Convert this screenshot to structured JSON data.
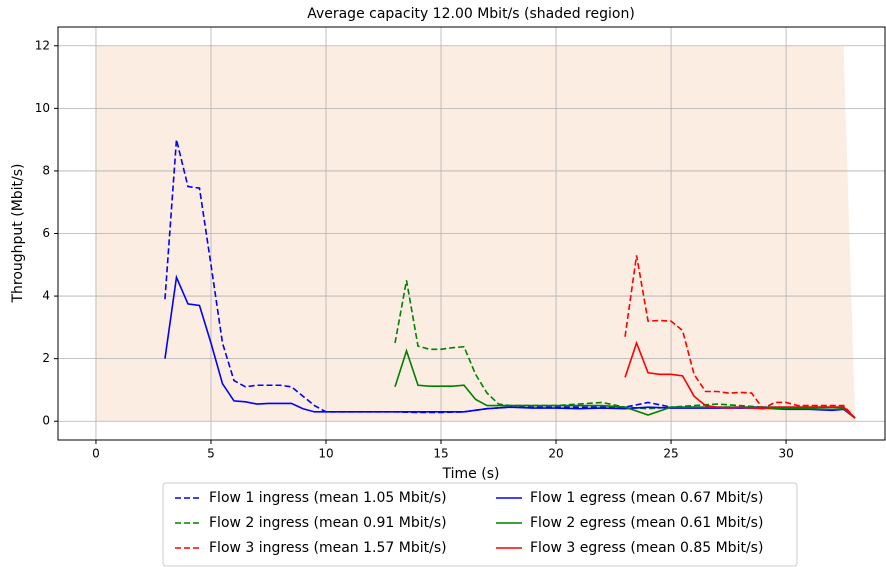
{
  "chart_data": {
    "type": "line",
    "title": "Average capacity 12.00 Mbit/s (shaded region)",
    "xlabel": "Time (s)",
    "ylabel": "Throughput (Mbit/s)",
    "xlim": [
      -1.65,
      34.3
    ],
    "ylim": [
      -0.6,
      12.6
    ],
    "xticks": [
      0,
      5,
      10,
      15,
      20,
      25,
      30
    ],
    "yticks": [
      0,
      2,
      4,
      6,
      8,
      10,
      12
    ],
    "grid": true,
    "legend": "lower center",
    "shaded_region": {
      "color": "#fbede2",
      "x": [
        0,
        32.5,
        33
      ],
      "values": [
        12,
        12,
        0.1
      ]
    },
    "series": [
      {
        "name": "Flow 1 ingress (mean 1.05 Mbit/s)",
        "color": "#0000ff",
        "dashed": true,
        "x": [
          3,
          3.5,
          4,
          4.5,
          5,
          5.5,
          6,
          6.5,
          7,
          7.5,
          8,
          8.5,
          9,
          9.5,
          10,
          11,
          12,
          13,
          14,
          15,
          16,
          17,
          18,
          19,
          20,
          21,
          22,
          23,
          24,
          25,
          26,
          27,
          28,
          29,
          30,
          31,
          32,
          32.5,
          33
        ],
        "values": [
          3.9,
          9.0,
          7.5,
          7.45,
          5.0,
          2.5,
          1.3,
          1.1,
          1.15,
          1.15,
          1.15,
          1.1,
          0.8,
          0.5,
          0.3,
          0.3,
          0.3,
          0.3,
          0.28,
          0.28,
          0.3,
          0.4,
          0.45,
          0.45,
          0.45,
          0.45,
          0.45,
          0.45,
          0.6,
          0.45,
          0.45,
          0.45,
          0.45,
          0.45,
          0.45,
          0.45,
          0.45,
          0.45,
          0.1
        ]
      },
      {
        "name": "Flow 2 ingress (mean 0.91 Mbit/s)",
        "color": "#008000",
        "dashed": true,
        "x": [
          13,
          13.5,
          14,
          14.5,
          15,
          15.5,
          16,
          16.5,
          17,
          17.5,
          18,
          19,
          20,
          21,
          22,
          23,
          24,
          25,
          26,
          27,
          28,
          29,
          30,
          31,
          32,
          32.5,
          33
        ],
        "values": [
          2.5,
          4.5,
          2.4,
          2.3,
          2.3,
          2.35,
          2.38,
          1.5,
          0.9,
          0.55,
          0.5,
          0.5,
          0.5,
          0.55,
          0.6,
          0.45,
          0.4,
          0.45,
          0.5,
          0.55,
          0.5,
          0.45,
          0.45,
          0.45,
          0.45,
          0.45,
          0.1
        ]
      },
      {
        "name": "Flow 3 ingress (mean 1.57 Mbit/s)",
        "color": "#ff0000",
        "dashed": true,
        "x": [
          23,
          23.5,
          24,
          24.5,
          25,
          25.5,
          26,
          26.5,
          27,
          27.5,
          28,
          28.5,
          29,
          29.5,
          30,
          30.5,
          31,
          31.5,
          32,
          32.5,
          33
        ],
        "values": [
          2.7,
          5.3,
          3.2,
          3.22,
          3.2,
          2.9,
          1.5,
          0.95,
          0.95,
          0.9,
          0.92,
          0.9,
          0.4,
          0.6,
          0.6,
          0.5,
          0.5,
          0.5,
          0.5,
          0.5,
          0.1
        ]
      },
      {
        "name": "Flow 1 egress (mean 0.67 Mbit/s)",
        "color": "#0000ff",
        "dashed": false,
        "x": [
          3,
          3.5,
          4,
          4.5,
          5,
          5.5,
          6,
          6.5,
          7,
          7.5,
          8,
          8.5,
          9,
          9.5,
          10,
          11,
          12,
          13,
          14,
          15,
          16,
          17,
          18,
          19,
          20,
          21,
          22,
          23,
          24,
          25,
          26,
          27,
          28,
          29,
          30,
          31,
          32,
          32.5,
          33
        ],
        "values": [
          2.0,
          4.6,
          3.75,
          3.7,
          2.5,
          1.2,
          0.65,
          0.62,
          0.55,
          0.57,
          0.57,
          0.57,
          0.4,
          0.3,
          0.3,
          0.3,
          0.3,
          0.3,
          0.3,
          0.3,
          0.3,
          0.4,
          0.45,
          0.42,
          0.42,
          0.4,
          0.42,
          0.4,
          0.45,
          0.42,
          0.42,
          0.42,
          0.42,
          0.42,
          0.38,
          0.38,
          0.35,
          0.38,
          0.1
        ]
      },
      {
        "name": "Flow 2 egress (mean 0.61 Mbit/s)",
        "color": "#008000",
        "dashed": false,
        "x": [
          13,
          13.5,
          14,
          14.5,
          15,
          15.5,
          16,
          16.5,
          17,
          17.5,
          18,
          19,
          20,
          21,
          22,
          23,
          24,
          25,
          26,
          27,
          28,
          29,
          30,
          31,
          32,
          32.5,
          33
        ],
        "values": [
          1.1,
          2.25,
          1.15,
          1.12,
          1.12,
          1.12,
          1.15,
          0.7,
          0.5,
          0.5,
          0.5,
          0.5,
          0.5,
          0.5,
          0.5,
          0.45,
          0.2,
          0.45,
          0.45,
          0.45,
          0.45,
          0.42,
          0.4,
          0.4,
          0.38,
          0.4,
          0.1
        ]
      },
      {
        "name": "Flow 3 egress (mean 0.85 Mbit/s)",
        "color": "#ff0000",
        "dashed": false,
        "x": [
          23,
          23.5,
          24,
          24.5,
          25,
          25.5,
          26,
          26.5,
          27,
          27.5,
          28,
          28.5,
          29,
          29.5,
          30,
          30.5,
          31,
          31.5,
          32,
          32.5,
          33
        ],
        "values": [
          1.4,
          2.5,
          1.55,
          1.5,
          1.5,
          1.45,
          0.8,
          0.5,
          0.45,
          0.42,
          0.45,
          0.42,
          0.4,
          0.45,
          0.45,
          0.45,
          0.45,
          0.45,
          0.45,
          0.45,
          0.1
        ]
      }
    ]
  }
}
